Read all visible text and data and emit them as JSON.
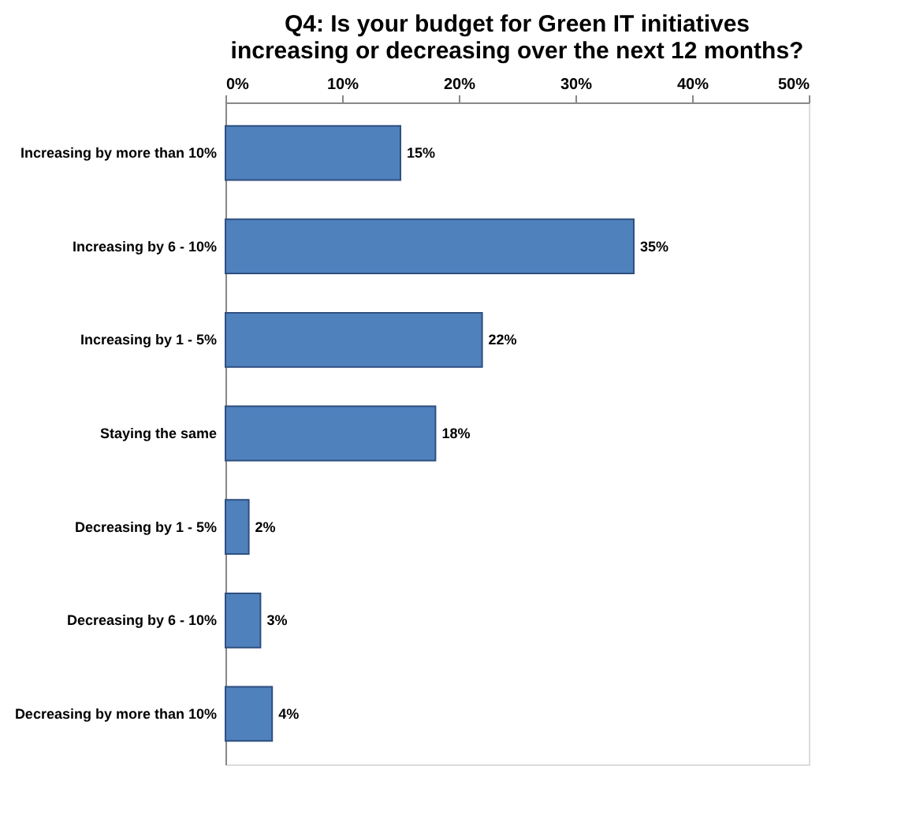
{
  "chart_data": {
    "type": "bar",
    "orientation": "horizontal",
    "title": "Q4: Is your budget for Green IT initiatives increasing or decreasing over the next 12 months?",
    "categories": [
      "Increasing by more than 10%",
      "Increasing by 6 - 10%",
      "Increasing by 1 - 5%",
      "Staying the same",
      "Decreasing by 1 - 5%",
      "Decreasing by 6 - 10%",
      "Decreasing by more than 10%"
    ],
    "values": [
      15,
      35,
      22,
      18,
      2,
      3,
      4
    ],
    "value_labels": [
      "15%",
      "35%",
      "22%",
      "18%",
      "2%",
      "3%",
      "4%"
    ],
    "color": "#4f81bd",
    "xlim": [
      0,
      50
    ],
    "xticks": [
      {
        "value": 0,
        "label": "0%"
      },
      {
        "value": 10,
        "label": "10%"
      },
      {
        "value": 20,
        "label": "20%"
      },
      {
        "value": 30,
        "label": "30%"
      },
      {
        "value": 40,
        "label": "40%"
      },
      {
        "value": 50,
        "label": "50%"
      }
    ],
    "grid": false
  }
}
